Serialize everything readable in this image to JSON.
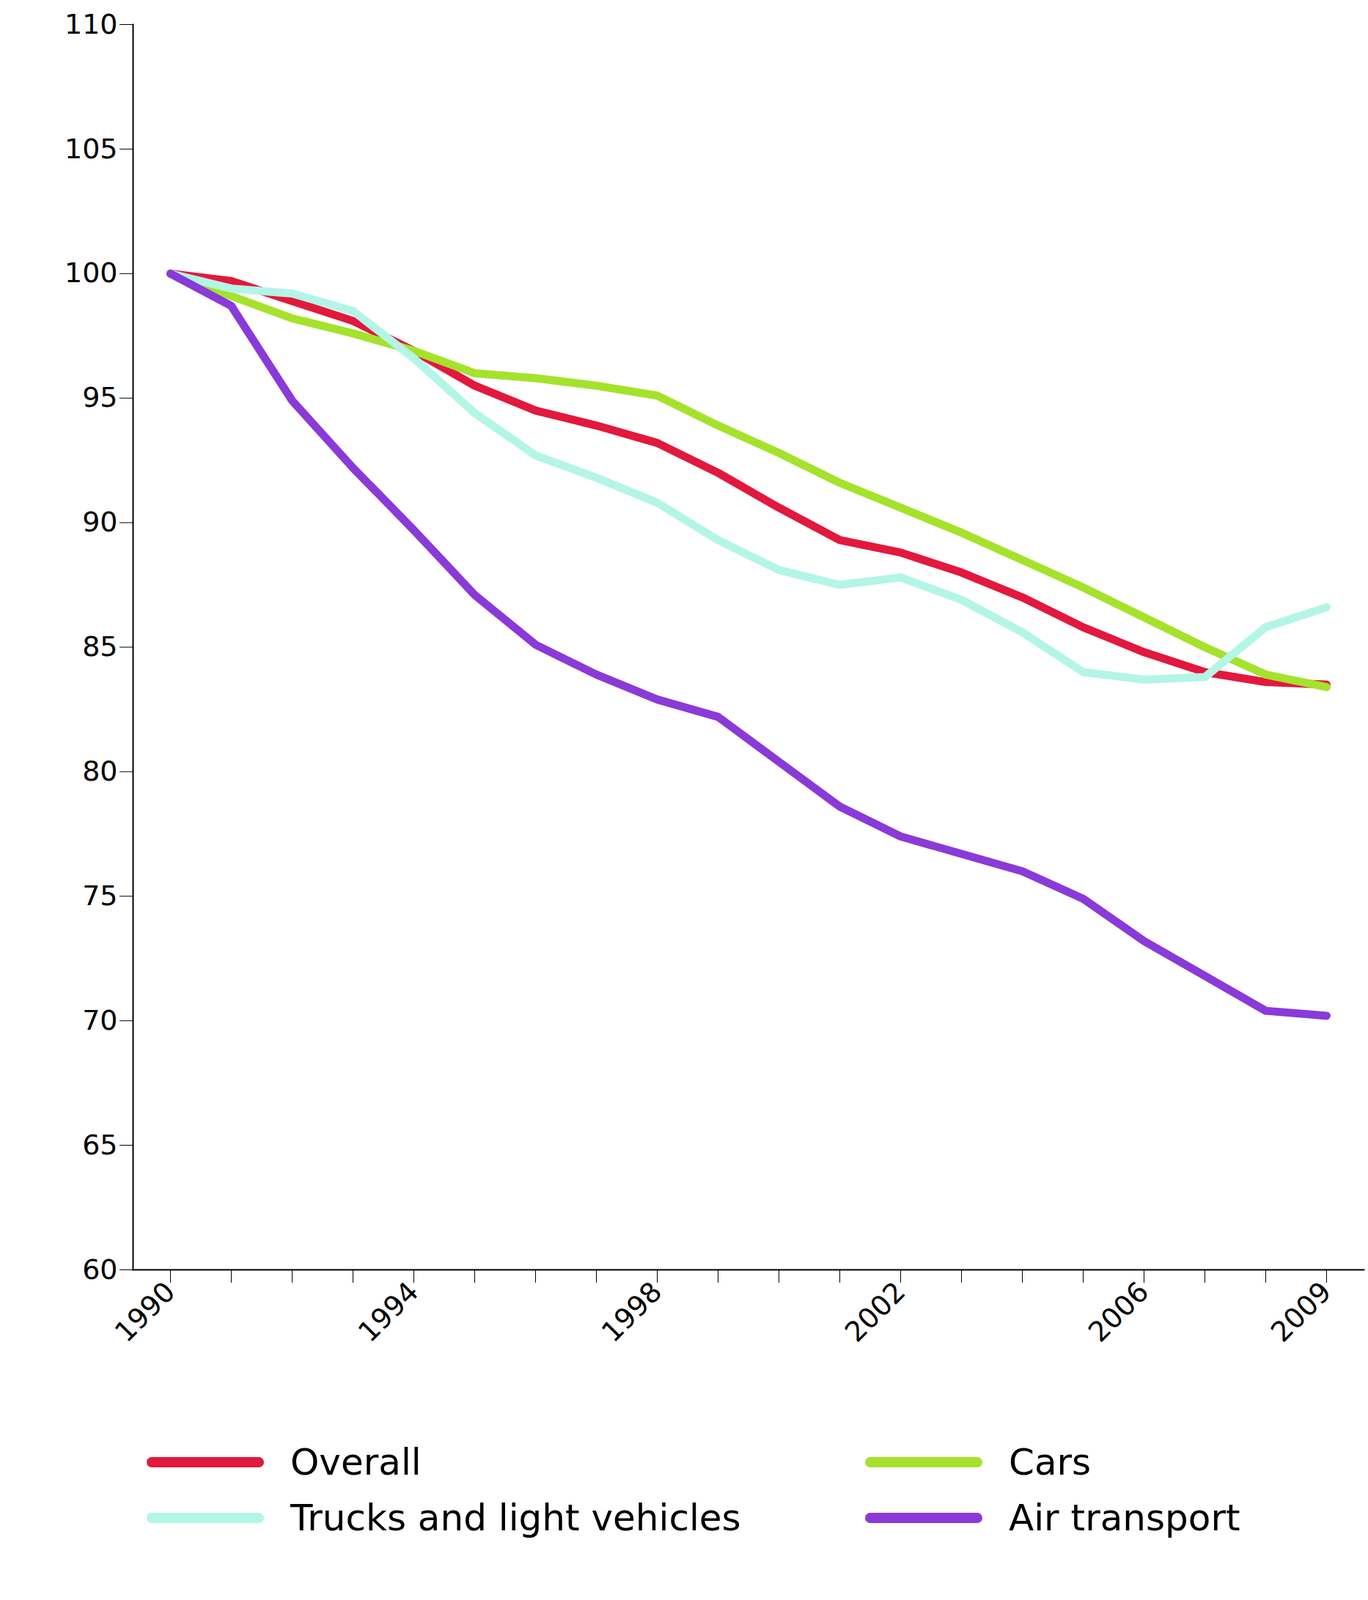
{
  "chart_data": {
    "type": "line",
    "categories": [
      "1990",
      null,
      null,
      null,
      "1994",
      null,
      null,
      null,
      "1998",
      null,
      null,
      null,
      "2002",
      null,
      null,
      null,
      "2006",
      null,
      null,
      "2009"
    ],
    "ylim": [
      60,
      110
    ],
    "yticks": [
      60,
      65,
      70,
      75,
      80,
      85,
      90,
      95,
      100,
      105,
      110
    ],
    "grid": false,
    "series": [
      {
        "name": "Overall",
        "color": "#e2183d",
        "values": [
          100,
          99.7,
          98.9,
          98.1,
          96.9,
          95.5,
          94.5,
          93.9,
          93.2,
          92.0,
          90.6,
          89.3,
          88.8,
          88.0,
          87.0,
          85.8,
          84.8,
          84.0,
          83.6,
          83.5
        ]
      },
      {
        "name": "Cars",
        "color": "#a5e22c",
        "values": [
          100,
          99.1,
          98.2,
          97.6,
          96.9,
          96.0,
          95.8,
          95.5,
          95.1,
          93.9,
          92.8,
          91.6,
          90.6,
          89.6,
          88.5,
          87.4,
          86.2,
          85.0,
          83.9,
          83.4
        ]
      },
      {
        "name": "Trucks and light vehicles",
        "color": "#b3f5e6",
        "values": [
          100,
          99.4,
          99.2,
          98.5,
          96.6,
          94.4,
          92.7,
          91.8,
          90.8,
          89.3,
          88.1,
          87.5,
          87.8,
          86.9,
          85.6,
          84.0,
          83.7,
          83.8,
          85.8,
          86.6
        ]
      },
      {
        "name": "Air transport",
        "color": "#8a3ad8",
        "values": [
          100,
          98.7,
          94.9,
          92.2,
          89.7,
          87.1,
          85.1,
          83.9,
          82.9,
          82.2,
          80.4,
          78.6,
          77.4,
          76.7,
          76.0,
          74.9,
          73.2,
          71.8,
          70.4,
          70.2
        ]
      }
    ]
  }
}
